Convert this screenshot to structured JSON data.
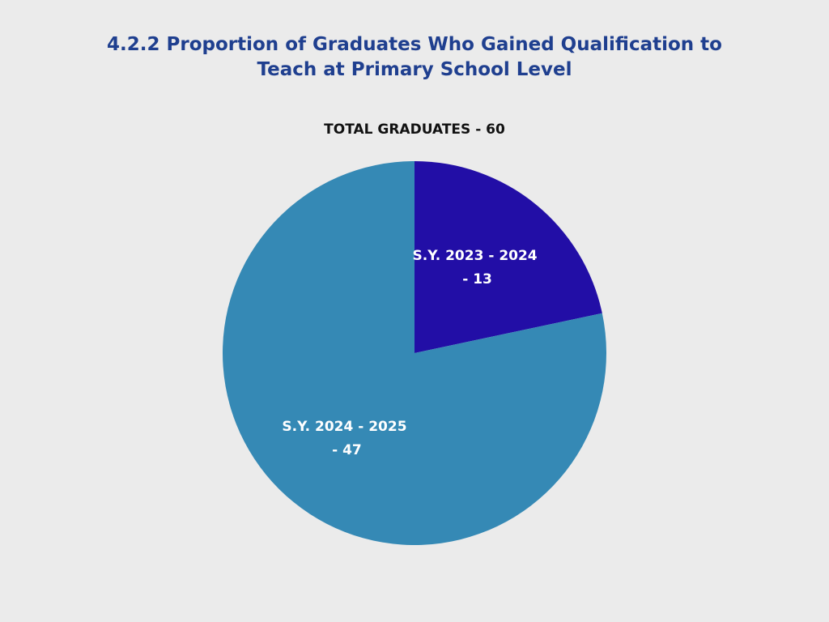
{
  "chart_data": {
    "type": "pie",
    "title": "4.2.2 Proportion of Graduates Who Gained Qualification to\nTeach at Primary School Level",
    "subtitle": "TOTAL GRADUATES - 60",
    "start_angle_deg": 0,
    "direction": "clockwise",
    "slices": [
      {
        "label_line1": "S.Y. 2023 - 2024",
        "label_line2": "- 13",
        "value": 13,
        "color": "#220ea6"
      },
      {
        "label_line1": "S.Y. 2024 - 2025",
        "label_line2": "- 47",
        "value": 47,
        "color": "#3589b5"
      }
    ],
    "legend": "none",
    "grid": false
  }
}
